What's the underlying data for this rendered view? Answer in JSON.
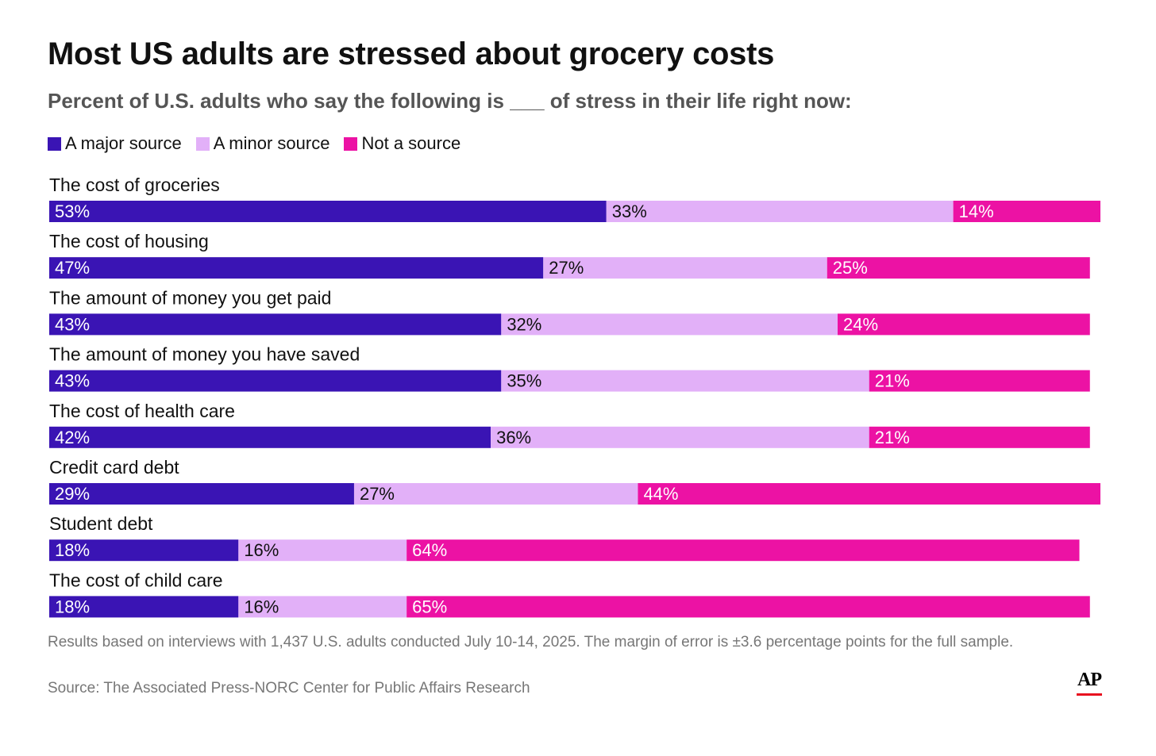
{
  "header": {
    "title": "Most US adults are stressed about grocery costs",
    "subtitle": "Percent of U.S. adults who say the following is ___ of stress in their life right now:"
  },
  "footer": {
    "note": "Results based on interviews with 1,437 U.S. adults conducted July 10-14, 2025. The margin of error is ±3.6 percentage points for the full sample.",
    "source": "Source: The Associated Press-NORC Center for Public Affairs Research",
    "logo": "AP"
  },
  "colors": {
    "major": "#3a14b4",
    "minor": "#e2b0f8",
    "not": "#ec12a4",
    "logo_accent": "#e8101f"
  },
  "chart_data": {
    "type": "bar",
    "orientation": "horizontal",
    "stacked": true,
    "title": "Most US adults are stressed about grocery costs",
    "subtitle": "Percent of U.S. adults who say the following is ___ of stress in their life right now:",
    "legend_position": "top-left",
    "grid": false,
    "categories": [
      "The cost of groceries",
      "The cost of housing",
      "The amount of money you get paid",
      "The amount of money you have saved",
      "The cost of health care",
      "Credit card debt",
      "Student debt",
      "The cost of child care"
    ],
    "series": [
      {
        "name": "A major source",
        "color": "#3a14b4",
        "values": [
          53,
          47,
          43,
          43,
          42,
          29,
          18,
          18
        ]
      },
      {
        "name": "A minor source",
        "color": "#e2b0f8",
        "values": [
          33,
          27,
          32,
          35,
          36,
          27,
          16,
          16
        ]
      },
      {
        "name": "Not a source",
        "color": "#ec12a4",
        "values": [
          14,
          25,
          24,
          21,
          21,
          44,
          64,
          65
        ]
      }
    ],
    "value_suffix": "%",
    "xlim": [
      0,
      100
    ]
  }
}
